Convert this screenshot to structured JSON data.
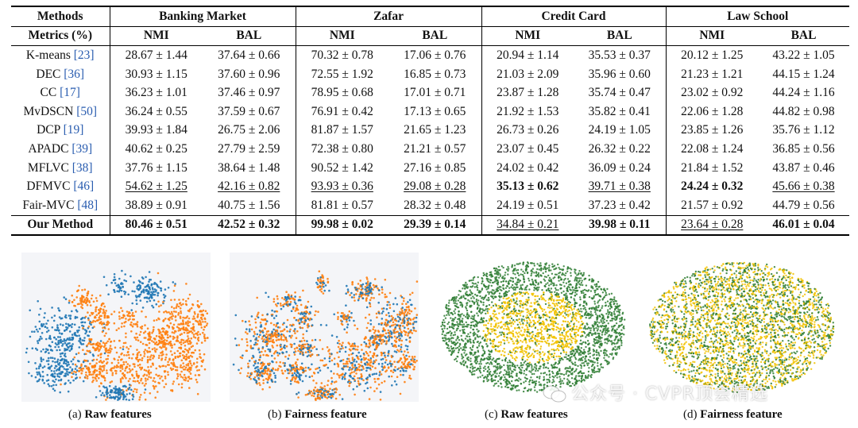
{
  "table": {
    "header_methods": "Methods",
    "header_metrics": "Metrics (%)",
    "datasets": [
      "Banking Market",
      "Zafar",
      "Credit Card",
      "Law School"
    ],
    "metrics": [
      "NMI",
      "BAL",
      "NMI",
      "BAL",
      "NMI",
      "BAL",
      "NMI",
      "BAL"
    ],
    "rows": [
      {
        "name": "K-means",
        "cite": "[23]",
        "cells": [
          {
            "v": "28.67 ± 1.44"
          },
          {
            "v": "37.64 ± 0.66"
          },
          {
            "v": "70.32 ± 0.78"
          },
          {
            "v": "17.06 ± 0.76"
          },
          {
            "v": "20.94 ± 1.14"
          },
          {
            "v": "35.53 ± 0.37"
          },
          {
            "v": "20.12 ± 1.25"
          },
          {
            "v": "43.22 ± 1.05"
          }
        ]
      },
      {
        "name": "DEC",
        "cite": "[36]",
        "cells": [
          {
            "v": "30.93 ± 1.15"
          },
          {
            "v": "37.60 ± 0.96"
          },
          {
            "v": "72.55 ± 1.92"
          },
          {
            "v": "16.85 ± 0.73"
          },
          {
            "v": "21.03 ± 2.09"
          },
          {
            "v": "35.96 ± 0.60"
          },
          {
            "v": "21.23 ± 1.21"
          },
          {
            "v": "44.15 ± 1.24"
          }
        ]
      },
      {
        "name": "CC",
        "cite": "[17]",
        "cells": [
          {
            "v": "36.23 ± 1.01"
          },
          {
            "v": "37.46 ± 0.97"
          },
          {
            "v": "78.95 ± 0.68"
          },
          {
            "v": "17.01 ± 0.71"
          },
          {
            "v": "23.87 ± 1.28"
          },
          {
            "v": "35.74 ± 0.47"
          },
          {
            "v": "23.02 ± 0.92"
          },
          {
            "v": "44.24 ± 1.16"
          }
        ]
      },
      {
        "name": "MvDSCN",
        "cite": "[50]",
        "cells": [
          {
            "v": "36.24 ± 0.55"
          },
          {
            "v": "37.59 ± 0.67"
          },
          {
            "v": "76.91 ± 0.42"
          },
          {
            "v": "17.13 ± 0.65"
          },
          {
            "v": "21.92 ± 1.53"
          },
          {
            "v": "35.82 ± 0.41"
          },
          {
            "v": "22.06 ± 1.28"
          },
          {
            "v": "44.82 ± 0.98"
          }
        ]
      },
      {
        "name": "DCP",
        "cite": "[19]",
        "cells": [
          {
            "v": "39.93 ± 1.84"
          },
          {
            "v": "26.75 ± 2.06"
          },
          {
            "v": "81.87 ± 1.57"
          },
          {
            "v": "21.65 ± 1.23"
          },
          {
            "v": "26.73 ± 0.26"
          },
          {
            "v": "24.19 ± 1.05"
          },
          {
            "v": "23.85 ± 1.26"
          },
          {
            "v": "35.76 ± 1.12"
          }
        ]
      },
      {
        "name": "APADC",
        "cite": "[39]",
        "cells": [
          {
            "v": "40.62 ± 0.25"
          },
          {
            "v": "27.79 ± 2.59"
          },
          {
            "v": "72.38 ± 0.80"
          },
          {
            "v": "21.21 ± 0.57"
          },
          {
            "v": "23.07 ± 0.45"
          },
          {
            "v": "26.32 ± 0.22"
          },
          {
            "v": "22.08 ± 1.24"
          },
          {
            "v": "36.85 ± 0.56"
          }
        ]
      },
      {
        "name": "MFLVC",
        "cite": "[38]",
        "cells": [
          {
            "v": "37.76 ± 1.15"
          },
          {
            "v": "38.64 ± 1.48"
          },
          {
            "v": "90.52 ± 1.42"
          },
          {
            "v": "27.16 ± 0.85"
          },
          {
            "v": "24.02 ± 0.42"
          },
          {
            "v": "36.09 ± 0.24"
          },
          {
            "v": "21.84 ± 1.52"
          },
          {
            "v": "43.87 ± 0.46"
          }
        ]
      },
      {
        "name": "DFMVC",
        "cite": "[46]",
        "cells": [
          {
            "v": "54.62 ± 1.25",
            "u": true
          },
          {
            "v": "42.16 ± 0.82",
            "u": true
          },
          {
            "v": "93.93 ± 0.36",
            "u": true
          },
          {
            "v": "29.08 ± 0.28",
            "u": true
          },
          {
            "v": "35.13 ± 0.62",
            "b": true
          },
          {
            "v": "39.71 ± 0.38",
            "u": true
          },
          {
            "v": "24.24 ± 0.32",
            "b": true
          },
          {
            "v": "45.66 ± 0.38",
            "u": true
          }
        ]
      },
      {
        "name": "Fair-MVC",
        "cite": "[48]",
        "cells": [
          {
            "v": "38.89 ± 0.91"
          },
          {
            "v": "40.75 ± 1.56"
          },
          {
            "v": "81.81 ± 0.57"
          },
          {
            "v": "28.32 ± 0.48"
          },
          {
            "v": "24.19 ± 0.51"
          },
          {
            "v": "37.23 ± 0.42"
          },
          {
            "v": "21.57 ± 0.92"
          },
          {
            "v": "44.79 ± 0.56"
          }
        ]
      }
    ],
    "ours": {
      "name": "Our Method",
      "cells": [
        {
          "v": "80.46 ± 0.51",
          "b": true
        },
        {
          "v": "42.52 ± 0.32",
          "b": true
        },
        {
          "v": "99.98 ± 0.02",
          "b": true
        },
        {
          "v": "29.39 ± 0.14",
          "b": true
        },
        {
          "v": "34.84 ± 0.21",
          "u": true
        },
        {
          "v": "39.98 ± 0.11",
          "b": true
        },
        {
          "v": "23.64 ± 0.28",
          "u": true
        },
        {
          "v": "46.01 ± 0.04",
          "b": true
        }
      ]
    }
  },
  "figures": [
    {
      "prefix": "(a) ",
      "label": "Raw features",
      "colors": [
        "#1f77b4",
        "#ff7f0e"
      ]
    },
    {
      "prefix": "(b) ",
      "label": "Fairness feature",
      "colors": [
        "#1f77b4",
        "#ff7f0e"
      ]
    },
    {
      "prefix": "(c) ",
      "label": "Raw features",
      "colors": [
        "#2e7d32",
        "#f2c200"
      ]
    },
    {
      "prefix": "(d) ",
      "label": "Fairness feature",
      "colors": [
        "#2e7d32",
        "#f2c200"
      ]
    }
  ],
  "watermark": "公众号 · CVPR顶会精选"
}
